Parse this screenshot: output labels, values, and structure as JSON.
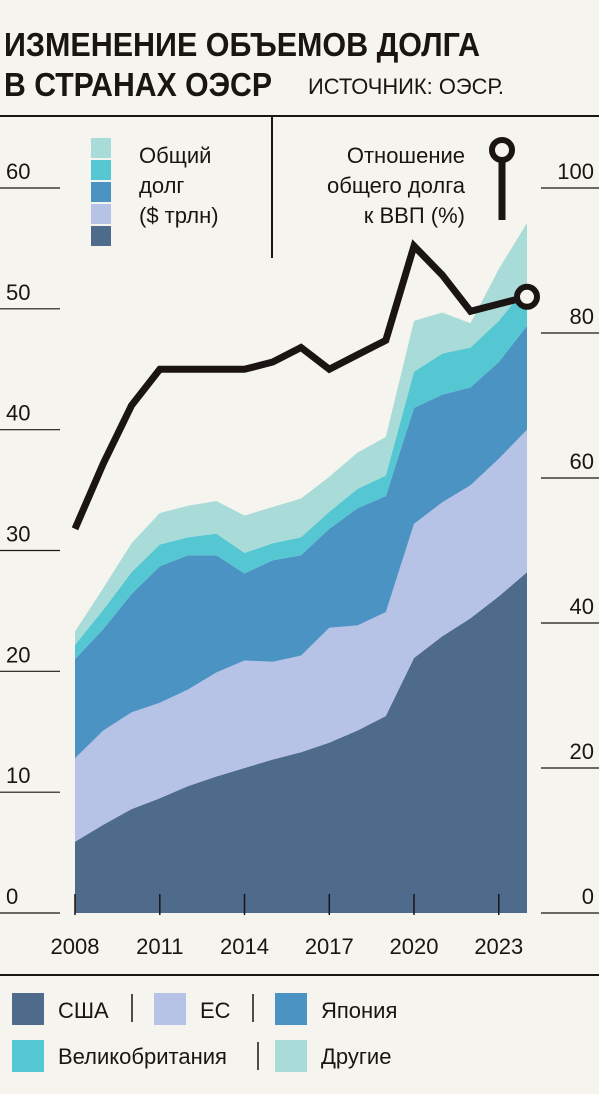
{
  "header": {
    "title_line1": "ИЗМЕНЕНИЕ ОБЪЕМОВ ДОЛГА",
    "title_line2": "В СТРАНАХ ОЭСР",
    "source": "ИСТОЧНИК: ОЭСР."
  },
  "colors": {
    "background": "#f6f4ef",
    "usa": "#4f6b8c",
    "eu": "#b6c2e6",
    "japan": "#4b93c3",
    "uk": "#55c7d2",
    "other": "#a9dcd9",
    "ratio_line": "#1a1412"
  },
  "chart_data": {
    "type": "area",
    "subtype": "stacked-area-with-line",
    "x": [
      2008,
      2009,
      2010,
      2011,
      2012,
      2013,
      2014,
      2015,
      2016,
      2017,
      2018,
      2019,
      2020,
      2021,
      2022,
      2023,
      2024
    ],
    "x_ticks": [
      "2008",
      "2011",
      "2014",
      "2017",
      "2020",
      "2023"
    ],
    "left_axis": {
      "ticks": [
        "0",
        "10",
        "20",
        "30",
        "40",
        "50",
        "60"
      ],
      "ylim": [
        0,
        60
      ]
    },
    "right_axis": {
      "ticks": [
        "0",
        "20",
        "40",
        "60",
        "80",
        "100"
      ],
      "ylim": [
        0,
        100
      ]
    },
    "area_legend_title": [
      "Общий",
      "долг",
      "($ трлн)"
    ],
    "line_legend_title": [
      "Отношение",
      "общего долга",
      "к ВВП (%)"
    ],
    "series": [
      {
        "name": "США",
        "key": "usa",
        "axis": "left",
        "values": [
          5.9,
          7.3,
          8.6,
          9.5,
          10.5,
          11.3,
          12.0,
          12.7,
          13.3,
          14.1,
          15.1,
          16.3,
          21.1,
          22.9,
          24.4,
          26.2,
          28.2
        ]
      },
      {
        "name": "ЕС",
        "key": "eu",
        "axis": "left",
        "values": [
          6.9,
          7.8,
          8.0,
          7.9,
          8.0,
          8.6,
          8.9,
          8.1,
          8.0,
          9.5,
          8.7,
          8.6,
          11.1,
          11.1,
          11.0,
          11.4,
          11.8
        ]
      },
      {
        "name": "Япония",
        "key": "japan",
        "axis": "left",
        "values": [
          8.2,
          8.4,
          9.8,
          11.3,
          11.1,
          9.7,
          7.2,
          8.4,
          8.3,
          8.2,
          9.7,
          9.6,
          9.6,
          8.9,
          8.1,
          8.0,
          8.6
        ]
      },
      {
        "name": "Великобритания",
        "key": "uk",
        "axis": "left",
        "values": [
          1.2,
          1.6,
          1.8,
          1.8,
          1.5,
          1.8,
          1.7,
          1.4,
          1.5,
          1.4,
          1.6,
          1.7,
          3.0,
          3.4,
          3.3,
          3.4,
          3.3
        ]
      },
      {
        "name": "Другие",
        "key": "other",
        "axis": "left",
        "values": [
          1.1,
          1.8,
          2.4,
          2.6,
          2.6,
          2.7,
          3.1,
          3.0,
          3.2,
          2.9,
          3.0,
          3.2,
          4.2,
          3.4,
          2.0,
          4.3,
          5.2
        ]
      },
      {
        "name": "Отношение общего долга к ВВП (%)",
        "key": "ratio",
        "axis": "right",
        "values": [
          53,
          62,
          70,
          75,
          75,
          75,
          75,
          76,
          78,
          75,
          77,
          79,
          92,
          88,
          83,
          84,
          85
        ]
      }
    ],
    "legend": [
      "США",
      "ЕС",
      "Япония",
      "Великобритания",
      "Другие"
    ],
    "legend_placement": "bottom",
    "grid": false
  }
}
